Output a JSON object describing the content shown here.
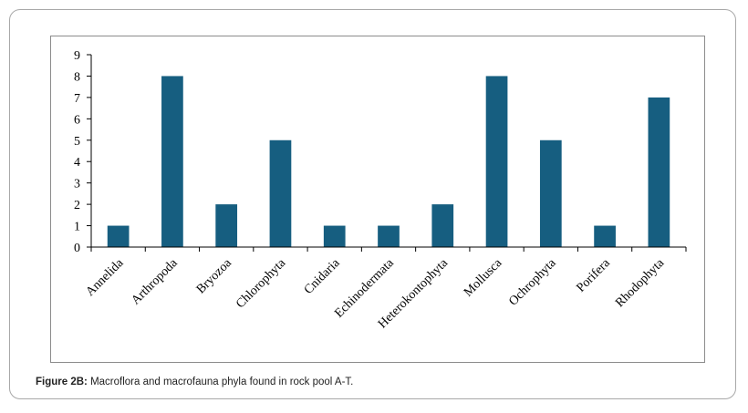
{
  "caption": {
    "label": "Figure 2B:",
    "text": " Macroflora and macrofauna phyla found in rock pool A-T."
  },
  "chart_data": {
    "type": "bar",
    "categories": [
      "Annelida",
      "Arthropoda",
      "Bryozoa",
      "Chlorophyta",
      "Cnidaria",
      "Echinodermata",
      "Heterokontophyta",
      "Mollusca",
      "Ochrophyta",
      "Porifera",
      "Rhodophyta"
    ],
    "values": [
      1,
      8,
      2,
      5,
      1,
      1,
      2,
      8,
      5,
      1,
      7
    ],
    "ylim": [
      0,
      9
    ],
    "yticks": [
      "0",
      "1",
      "2",
      "3",
      "4",
      "5",
      "6",
      "7",
      "8",
      "9"
    ],
    "title": "",
    "xlabel": "",
    "ylabel": "",
    "bar_color": "#165e80",
    "grid": false,
    "legend": "none"
  }
}
